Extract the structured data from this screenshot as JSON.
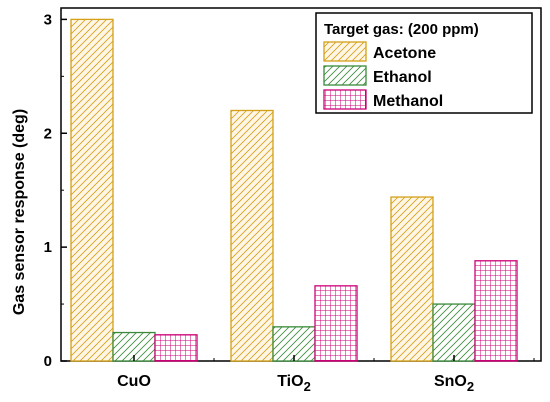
{
  "chart_data": {
    "type": "bar",
    "categories": [
      {
        "base": "CuO",
        "sub": ""
      },
      {
        "base": "TiO",
        "sub": "2"
      },
      {
        "base": "SnO",
        "sub": "2"
      }
    ],
    "series": [
      {
        "name": "Acetone",
        "values": [
          3.0,
          2.2,
          1.44
        ],
        "color": "#d4a017",
        "fill": "#fff6e6",
        "pattern": "diag-left"
      },
      {
        "name": "Ethanol",
        "values": [
          0.25,
          0.3,
          0.5
        ],
        "color": "#3a8a3a",
        "fill": "#ffffff",
        "pattern": "diag-right"
      },
      {
        "name": "Methanol",
        "values": [
          0.23,
          0.66,
          0.88
        ],
        "color": "#cc0077",
        "fill": "#ffffff",
        "pattern": "grid"
      }
    ],
    "ylabel": "Gas sensor response (deg)",
    "ylim": [
      0,
      3.1
    ],
    "yticks": [
      0,
      1,
      2,
      3
    ],
    "legend": {
      "title": "Target gas: (200 ppm)",
      "position": "top-right"
    }
  }
}
